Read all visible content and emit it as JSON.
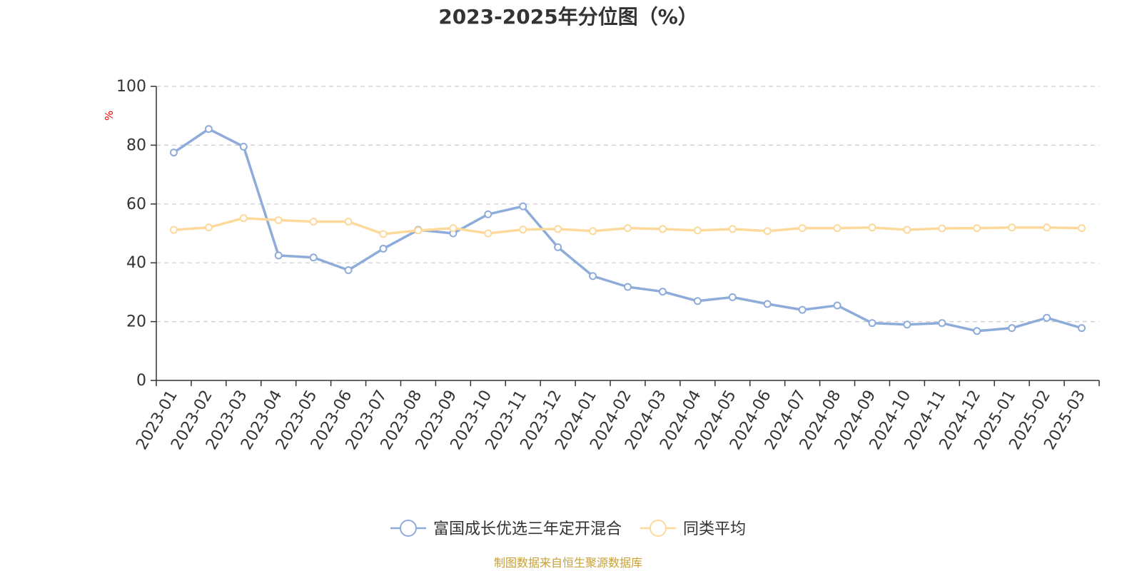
{
  "chart_data": {
    "type": "line",
    "title": "2023-2025年分位图（%）",
    "ylabel": "%",
    "ylim": [
      0,
      100
    ],
    "yticks": [
      0,
      20,
      40,
      60,
      80,
      100
    ],
    "grid": true,
    "legend_position": "bottom-center",
    "categories": [
      "2023-01",
      "2023-02",
      "2023-03",
      "2023-04",
      "2023-05",
      "2023-06",
      "2023-07",
      "2023-08",
      "2023-09",
      "2023-10",
      "2023-11",
      "2023-12",
      "2024-01",
      "2024-02",
      "2024-03",
      "2024-04",
      "2024-05",
      "2024-06",
      "2024-07",
      "2024-08",
      "2024-09",
      "2024-10",
      "2024-11",
      "2024-12",
      "2025-01",
      "2025-02",
      "2025-03"
    ],
    "series": [
      {
        "name": "富国成长优选三年定开混合",
        "color": "#8eacd9",
        "values": [
          77.5,
          85.5,
          79.5,
          42.5,
          41.8,
          37.5,
          44.8,
          51.2,
          50.0,
          56.5,
          59.2,
          45.3,
          35.5,
          31.8,
          30.2,
          27.0,
          28.3,
          26.0,
          24.0,
          25.5,
          19.5,
          19.0,
          19.5,
          16.8,
          17.8,
          21.3,
          17.8
        ]
      },
      {
        "name": "同类平均",
        "color": "#fdd99b",
        "values": [
          51.2,
          52.0,
          55.2,
          54.5,
          54.0,
          54.0,
          49.8,
          51.0,
          51.8,
          50.0,
          51.3,
          51.5,
          50.8,
          51.8,
          51.5,
          51.0,
          51.5,
          50.8,
          51.8,
          51.8,
          52.0,
          51.2,
          51.7,
          51.8,
          52.0,
          52.0,
          51.8
        ]
      }
    ]
  },
  "source": {
    "text": "制图数据来自恒生聚源数据库",
    "color": "#c8a034"
  }
}
